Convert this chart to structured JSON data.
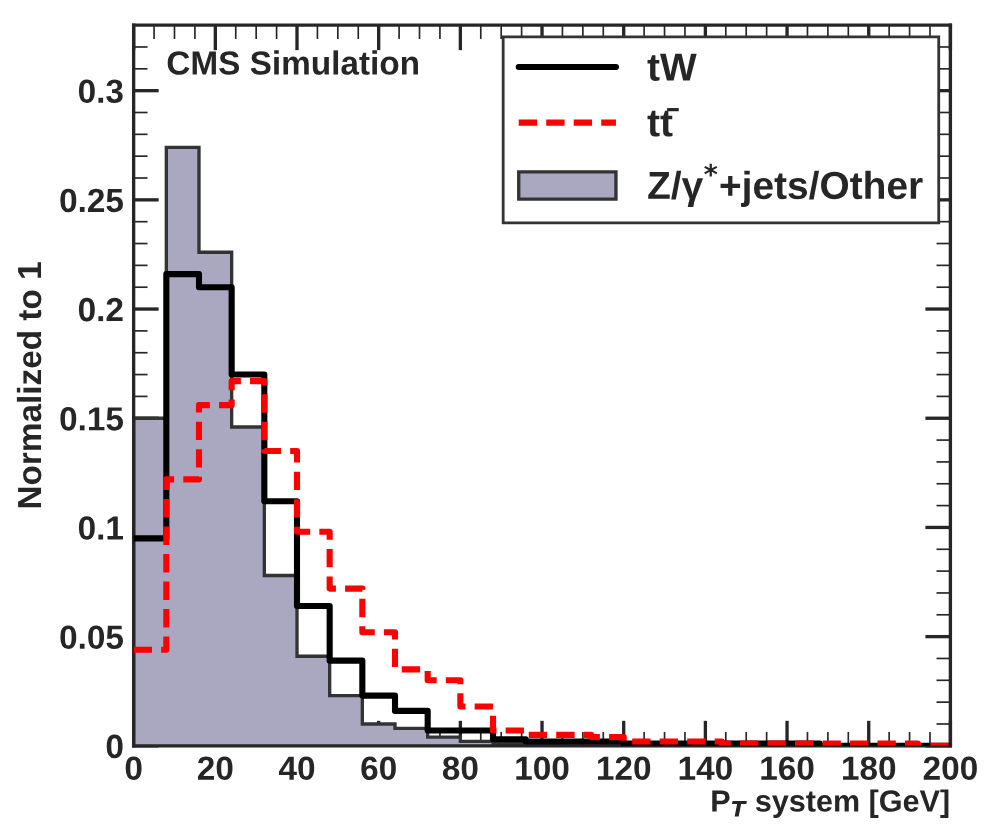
{
  "chart_data": {
    "type": "histogram",
    "bins": [
      0,
      8,
      16,
      24,
      32,
      40,
      48,
      56,
      64,
      72,
      80,
      88,
      96,
      104,
      112,
      120,
      128,
      136,
      144,
      152,
      160,
      168,
      176,
      184,
      192,
      200
    ],
    "series": [
      {
        "name": "tW",
        "type": "step",
        "color": "#000000",
        "line_style": "solid",
        "x": [
          0,
          8,
          16,
          24,
          32,
          40,
          48,
          56,
          64,
          72,
          80,
          88,
          96,
          104,
          112,
          120,
          128,
          136,
          144,
          152,
          160,
          168,
          176,
          184,
          192,
          200
        ],
        "values": [
          0.095,
          0.216,
          0.21,
          0.17,
          0.112,
          0.064,
          0.039,
          0.023,
          0.016,
          0.007,
          0.007,
          0.003,
          0.002,
          0.002,
          0.002,
          0.001,
          0.001,
          0.001,
          0.001,
          0.001,
          0.001,
          0,
          0,
          0,
          0,
          0
        ]
      },
      {
        "name": "tt̄",
        "type": "step",
        "color": "#ff0000",
        "line_style": "dashed",
        "x": [
          0,
          8,
          16,
          24,
          32,
          40,
          48,
          56,
          64,
          72,
          80,
          88,
          96,
          104,
          112,
          120,
          128,
          136,
          144,
          152,
          160,
          168,
          176,
          184,
          192,
          200
        ],
        "values": [
          0.044,
          0.122,
          0.156,
          0.167,
          0.135,
          0.098,
          0.072,
          0.052,
          0.035,
          0.03,
          0.018,
          0.007,
          0.005,
          0.005,
          0.004,
          0.002,
          0.002,
          0.002,
          0.001,
          0.001,
          0.001,
          0.001,
          0.001,
          0.001,
          0,
          0
        ]
      },
      {
        "name": "Z/γ$^{*}$+jets/Other",
        "color": "#aaa8c0",
        "values": [
          0.15,
          0.274,
          0.226,
          0.146,
          0.078,
          0.041,
          0.023,
          0.01,
          0.008,
          0.004,
          0.002,
          0.001,
          0.001,
          0,
          0,
          0,
          0,
          0,
          0,
          0,
          0,
          0,
          0,
          0,
          0
        ]
      }
    ],
    "xlabel": "P$_{T}$ system [GeV]",
    "ylabel": "Normalized to 1",
    "annotations": [
      "CMS Simulation"
    ],
    "xlim": [
      0,
      200
    ],
    "xticks": [
      0,
      20,
      40,
      60,
      80,
      100,
      120,
      140,
      160,
      180,
      200
    ],
    "ylim": [
      0,
      0.33
    ],
    "yticks": [
      0,
      0.05,
      0.1,
      0.15,
      0.2,
      0.25,
      0.3
    ],
    "legend": "top right"
  }
}
